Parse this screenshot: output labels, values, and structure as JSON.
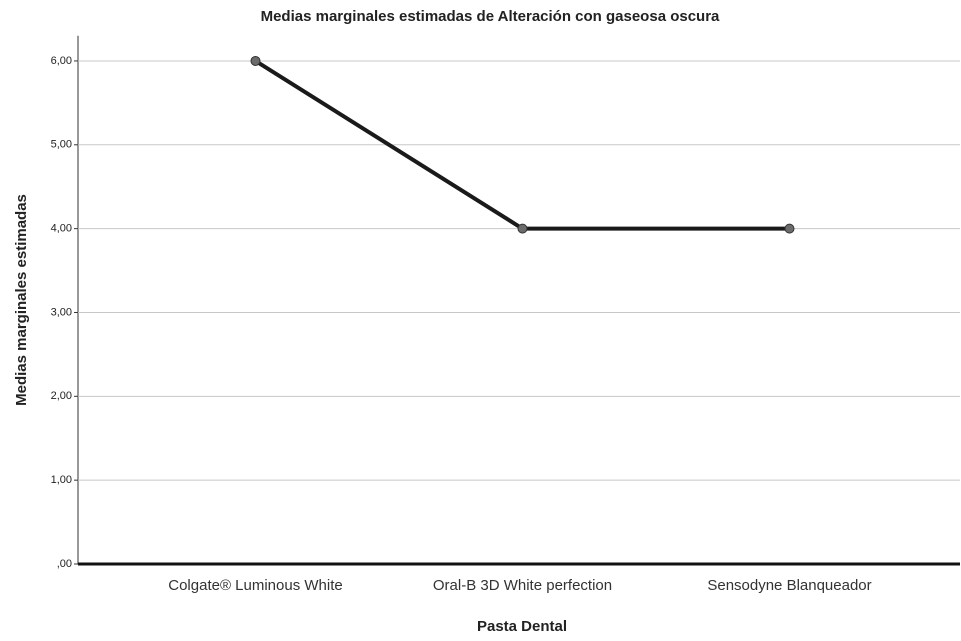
{
  "chart_data": {
    "type": "line",
    "title": "Medias marginales estimadas de Alteración con gaseosa oscura",
    "xlabel": "Pasta Dental",
    "ylabel": "Medias marginales estimadas",
    "categories": [
      "Colgate® Luminous White",
      "Oral-B 3D White perfection",
      "Sensodyne Blanqueador"
    ],
    "values": [
      6,
      4,
      4
    ],
    "color": "#1a1a1a",
    "ylim": [
      0,
      6.3
    ],
    "yticks": [
      {
        "value": 0,
        "label": ",00"
      },
      {
        "value": 1,
        "label": "1,00"
      },
      {
        "value": 2,
        "label": "2,00"
      },
      {
        "value": 3,
        "label": "3,00"
      },
      {
        "value": 4,
        "label": "4,00"
      },
      {
        "value": 5,
        "label": "5,00"
      },
      {
        "value": 6,
        "label": "6,00"
      }
    ],
    "grid": true
  }
}
